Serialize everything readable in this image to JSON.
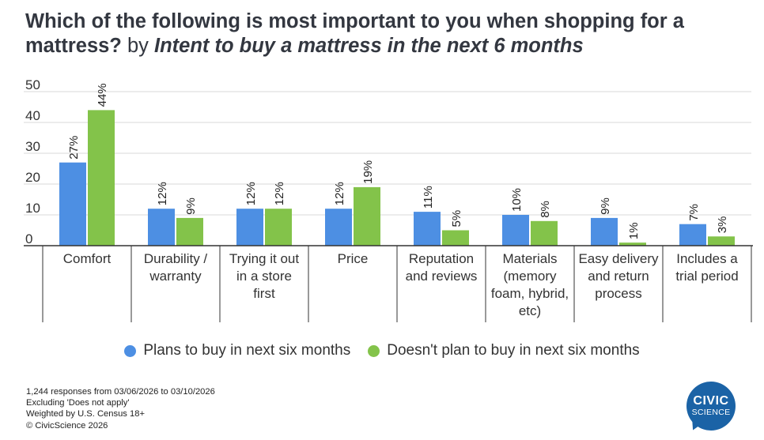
{
  "title": {
    "main": "Which of the following is most important to you when shopping for a mattress?",
    "by": "by",
    "intent": "Intent to buy a mattress in the next 6 months"
  },
  "colors": {
    "series1": "#4d8fe3",
    "series2": "#83c34a",
    "axis": "#333333",
    "grid": "#d9d9d9",
    "logo": "#1b63a6"
  },
  "chart_data": {
    "type": "bar",
    "title": "Which of the following is most important to you when shopping for a mattress? by Intent to buy a mattress in the next 6 months",
    "categories": [
      [
        "Comfort"
      ],
      [
        "Durability /",
        "warranty"
      ],
      [
        "Trying it out",
        "in a store",
        "first"
      ],
      [
        "Price"
      ],
      [
        "Reputation",
        "and reviews"
      ],
      [
        "Materials",
        "(memory",
        "foam, hybrid,",
        "etc)"
      ],
      [
        "Easy delivery",
        "and return",
        "process"
      ],
      [
        "Includes a",
        "trial period"
      ]
    ],
    "series": [
      {
        "name": "Plans to buy in next six months",
        "values": [
          27,
          12,
          12,
          12,
          11,
          10,
          9,
          7
        ],
        "labels": [
          "27%",
          "12%",
          "12%",
          "12%",
          "11%",
          "10%",
          "9%",
          "7%"
        ]
      },
      {
        "name": "Doesn't plan to buy in next six months",
        "values": [
          44,
          9,
          12,
          19,
          5,
          8,
          1,
          3
        ],
        "labels": [
          "44%",
          "9%",
          "12%",
          "19%",
          "5%",
          "8%",
          "1%",
          "3%"
        ]
      }
    ],
    "yticks": [
      0,
      10,
      20,
      30,
      40,
      50
    ],
    "ylim": [
      0,
      50
    ],
    "xlabel": "",
    "ylabel": "",
    "grid": true,
    "legend_position": "bottom"
  },
  "footnotes": [
    "1,244 responses from 03/06/2026 to 03/10/2026",
    "Excluding 'Does not apply'",
    "Weighted by U.S. Census 18+",
    "© CivicScience 2026"
  ],
  "logo": {
    "line1": "CIVIC",
    "line2": "SCIENCE"
  }
}
